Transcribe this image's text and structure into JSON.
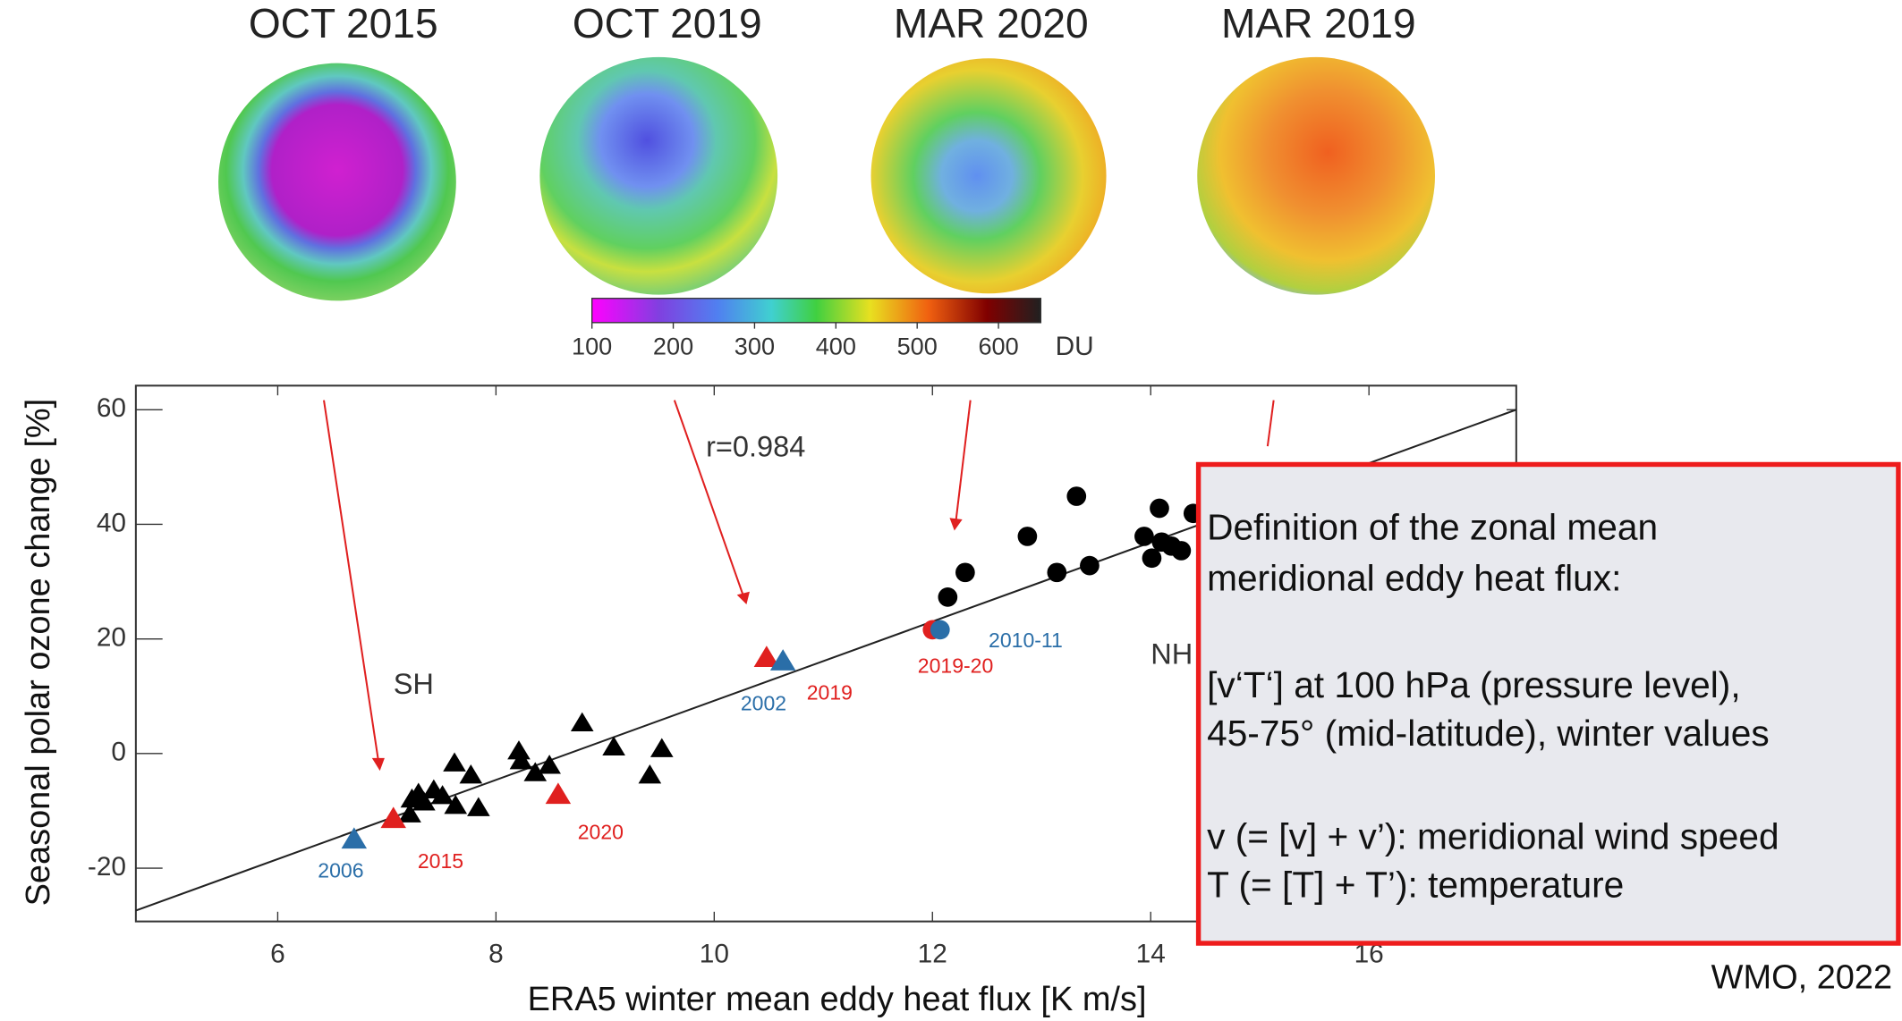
{
  "chart_data": {
    "type": "scatter",
    "map_titles": [
      "OCT 2015",
      "OCT 2019",
      "MAR 2020",
      "MAR 2019"
    ],
    "colorbar": {
      "ticks": [
        100,
        200,
        300,
        400,
        500,
        600
      ],
      "lim": [
        100,
        652
      ],
      "unit": "DU"
    },
    "x_label": "ERA5 winter mean eddy heat flux [K m/s]",
    "y_label": "Seasonal polar ozone change [%]",
    "xlim": [
      4.7,
      17.35
    ],
    "ylim": [
      -29.3,
      64.2
    ],
    "xticks": [
      6,
      8,
      10,
      12,
      14,
      16
    ],
    "yticks": [
      -20,
      0,
      20,
      40,
      60
    ],
    "fit_line": {
      "x": [
        4.7,
        17.35
      ],
      "y": [
        -27.4,
        60
      ]
    },
    "annotations": {
      "r": "r=0.984",
      "sh": "SH",
      "nh": "NH"
    },
    "series": [
      {
        "marker": "triangle",
        "color": "#000000",
        "x": [
          7.21,
          7.23,
          7.29,
          7.34,
          7.43,
          7.51,
          7.62,
          7.63,
          7.77,
          7.84,
          8.21,
          8.23,
          8.36,
          8.49,
          8.79,
          9.08,
          9.41,
          9.52
        ],
        "values": [
          -10.6,
          -8,
          -7,
          -8.5,
          -6.4,
          -7.4,
          -1.7,
          -9.1,
          -3.8,
          -9.5,
          0.4,
          -1.3,
          -3.4,
          -2.1,
          5.3,
          1.1,
          -3.8,
          0.8
        ]
      },
      {
        "marker": "circle",
        "color": "#000000",
        "x": [
          12.14,
          12.3,
          12.87,
          13.14,
          13.32,
          13.44,
          13.94,
          14.01,
          14.08,
          14.1,
          14.19,
          14.28,
          14.39
        ],
        "values": [
          27.3,
          31.6,
          37.9,
          31.6,
          44.9,
          32.8,
          37.9,
          34.1,
          42.8,
          36.9,
          36.2,
          35.4,
          41.9
        ]
      },
      {
        "marker": "triangle",
        "color": "#e0201f",
        "x": [
          7.06,
          8.57,
          10.48
        ],
        "values": [
          -11.4,
          -7.2,
          16.7
        ],
        "labels": [
          "2015",
          "2020",
          "2019"
        ]
      },
      {
        "marker": "triangle",
        "color": "#2a6ea8",
        "x": [
          6.7,
          10.63
        ],
        "values": [
          -15,
          16.1
        ],
        "labels": [
          "2006",
          "2002"
        ]
      },
      {
        "marker": "circle",
        "color": "#e0201f",
        "x": [
          12.0
        ],
        "values": [
          21.6
        ],
        "labels": [
          "2019-20"
        ]
      },
      {
        "marker": "circle",
        "color": "#2a6ea8",
        "x": [
          12.07
        ],
        "values": [
          21.6
        ],
        "labels": [
          "2010-11"
        ]
      }
    ]
  },
  "definition_box": {
    "lines": [
      "Definition of the zonal mean",
      "meridional eddy heat flux:",
      "[v‘T‘] at 100 hPa (pressure level),",
      "45-75° (mid-latitude), winter values",
      "v (= [v] + v’): meridional wind speed",
      "T (= [T] + T’): temperature"
    ]
  },
  "source": "WMO, 2022"
}
